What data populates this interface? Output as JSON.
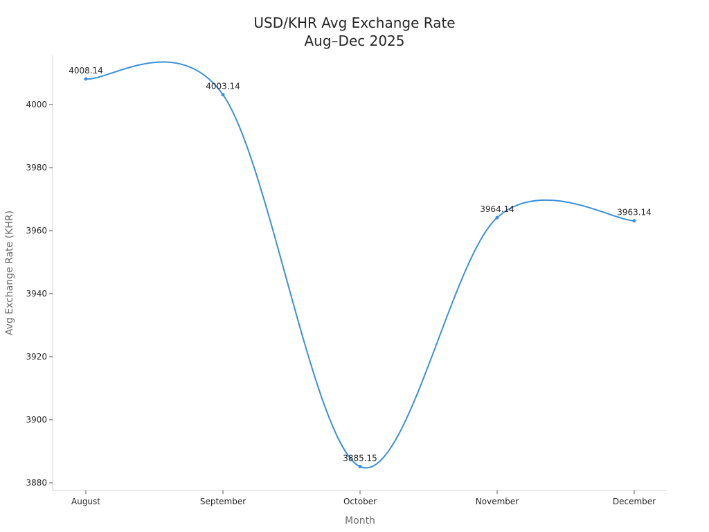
{
  "chart_data": {
    "type": "line",
    "title": "USD/KHR Avg Exchange Rate",
    "subtitle": "Aug–Dec 2025",
    "xlabel": "Month",
    "ylabel": "Avg Exchange Rate (KHR)",
    "categories": [
      "August",
      "September",
      "October",
      "November",
      "December"
    ],
    "series": [
      {
        "name": "Avg Exchange Rate",
        "values": [
          4008.14,
          4003.14,
          3885.15,
          3964.14,
          3963.14
        ],
        "labels": [
          "4008.14",
          "4003.14",
          "3885.15",
          "3964.14",
          "3963.14"
        ],
        "color": "#3a8fdc",
        "smooth": true,
        "markers": true
      }
    ],
    "yticks": [
      3880,
      3900,
      3920,
      3940,
      3960,
      3980,
      4000
    ],
    "ylim": [
      3877.5,
      4016
    ],
    "grid": false,
    "legend": "none"
  },
  "colors": {
    "line": "#3a8fdc",
    "axis": "#d0d0d0",
    "text": "#262626",
    "axis_title": "#6b6b6b"
  }
}
